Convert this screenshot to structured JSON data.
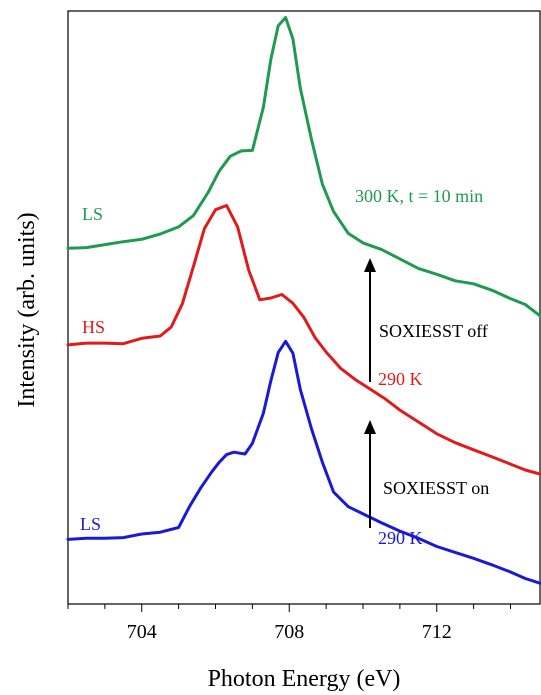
{
  "chart_data": {
    "type": "line",
    "xlabel": "Photon Energy (eV)",
    "ylabel": "Intensity (arb. units)",
    "xlim": [
      702.0,
      714.8
    ],
    "ylim": [
      0.0,
      1.0
    ],
    "xticks": [
      704,
      708,
      712
    ],
    "yticks_shown": false,
    "grid": false,
    "series": [
      {
        "name": "LS",
        "temperature": "290 K",
        "condition": "SOXIESST on",
        "color": "#1a1ad6",
        "x": [
          702.0,
          702.5,
          703.0,
          703.5,
          704.0,
          704.5,
          705.0,
          705.3,
          705.6,
          705.9,
          706.1,
          706.3,
          706.5,
          706.8,
          707.0,
          707.3,
          707.5,
          707.7,
          707.9,
          708.1,
          708.3,
          708.6,
          708.9,
          709.2,
          709.6,
          710.0,
          710.5,
          711.0,
          711.5,
          712.0,
          712.5,
          713.0,
          713.5,
          714.0,
          714.4,
          714.8
        ],
        "y": [
          0.109,
          0.111,
          0.111,
          0.112,
          0.118,
          0.121,
          0.129,
          0.165,
          0.196,
          0.223,
          0.239,
          0.252,
          0.256,
          0.253,
          0.271,
          0.322,
          0.376,
          0.424,
          0.443,
          0.423,
          0.362,
          0.296,
          0.239,
          0.189,
          0.164,
          0.152,
          0.137,
          0.123,
          0.111,
          0.097,
          0.087,
          0.077,
          0.066,
          0.054,
          0.043,
          0.035
        ]
      },
      {
        "name": "HS",
        "temperature": "290 K",
        "condition": "SOXIESST off",
        "color": "#e01b1b",
        "x": [
          702.0,
          702.5,
          703.0,
          703.5,
          704.0,
          704.5,
          704.8,
          705.1,
          705.4,
          705.7,
          706.0,
          706.3,
          706.6,
          706.9,
          707.2,
          707.5,
          707.8,
          708.1,
          708.4,
          708.7,
          709.0,
          709.4,
          709.8,
          710.2,
          710.6,
          711.0,
          711.5,
          712.0,
          712.5,
          713.0,
          713.5,
          714.0,
          714.4,
          714.8
        ],
        "y": [
          0.437,
          0.44,
          0.44,
          0.439,
          0.448,
          0.452,
          0.467,
          0.506,
          0.569,
          0.633,
          0.665,
          0.672,
          0.636,
          0.563,
          0.513,
          0.516,
          0.522,
          0.507,
          0.483,
          0.449,
          0.425,
          0.397,
          0.378,
          0.362,
          0.346,
          0.327,
          0.307,
          0.287,
          0.272,
          0.26,
          0.248,
          0.236,
          0.226,
          0.219
        ]
      },
      {
        "name": "LS",
        "temperature": "300 K",
        "condition": "t = 10 min",
        "color": "#1f9a50",
        "x": [
          702.0,
          702.5,
          703.0,
          703.5,
          704.0,
          704.5,
          705.0,
          705.4,
          705.8,
          706.1,
          706.4,
          706.7,
          707.0,
          707.3,
          707.5,
          707.7,
          707.9,
          708.1,
          708.3,
          708.6,
          708.9,
          709.2,
          709.6,
          710.0,
          710.5,
          711.0,
          711.5,
          712.0,
          712.5,
          713.0,
          713.5,
          714.0,
          714.4,
          714.8
        ],
        "y": [
          0.6,
          0.601,
          0.606,
          0.611,
          0.615,
          0.624,
          0.636,
          0.655,
          0.694,
          0.73,
          0.755,
          0.764,
          0.765,
          0.838,
          0.918,
          0.975,
          0.989,
          0.953,
          0.87,
          0.784,
          0.708,
          0.662,
          0.625,
          0.609,
          0.598,
          0.582,
          0.566,
          0.556,
          0.545,
          0.54,
          0.529,
          0.515,
          0.505,
          0.486
        ]
      }
    ],
    "annotations": [
      {
        "text": "LS",
        "color": "#1f9a50"
      },
      {
        "text": "HS",
        "color": "#e01b1b"
      },
      {
        "text": "LS",
        "color": "#1a1ad6"
      },
      {
        "text": "300 K, t = 10 min",
        "color": "#1f9a50"
      },
      {
        "text": "290 K",
        "color": "#e01b1b"
      },
      {
        "text": "290 K",
        "color": "#1a1ad6"
      },
      {
        "text": "SOXIESST off",
        "color": "#000000"
      },
      {
        "text": "SOXIESST on",
        "color": "#000000"
      }
    ]
  }
}
